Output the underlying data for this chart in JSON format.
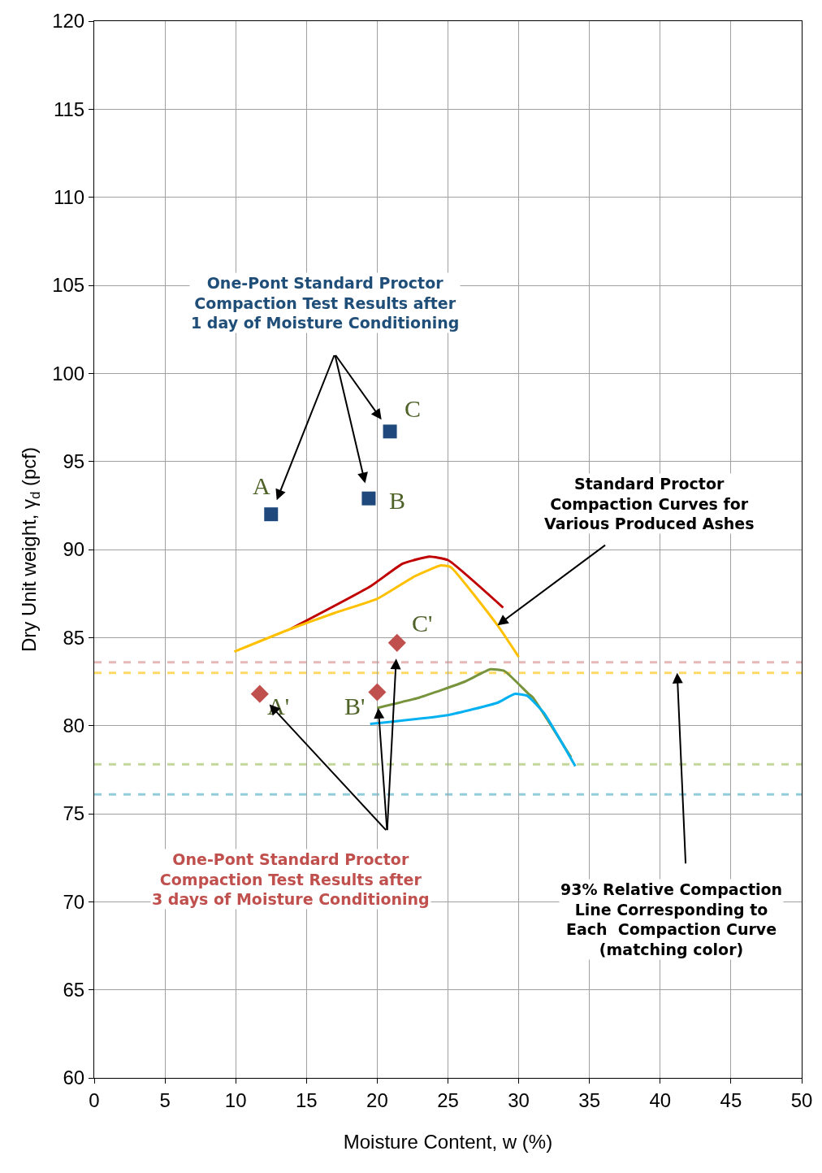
{
  "chart_data": {
    "type": "line",
    "xlabel": "Moisture Content, w (%)",
    "ylabel": "Dry Unit weight, γ$_{d}$ (pcf)",
    "xlim": [
      0,
      50
    ],
    "xticks": [
      0,
      5,
      10,
      15,
      20,
      25,
      30,
      35,
      40,
      45,
      50
    ],
    "ylim": [
      60,
      120
    ],
    "yticks": [
      60,
      65,
      70,
      75,
      80,
      85,
      90,
      95,
      100,
      105,
      110,
      115,
      120
    ],
    "grid": true,
    "series": [
      {
        "type": "scatter",
        "marker": "square",
        "color": "#1f497d",
        "x": [
          12.5,
          19.4,
          20.9
        ],
        "values": [
          92.0,
          92.9,
          96.7
        ]
      },
      {
        "type": "scatter",
        "marker": "diamond",
        "color": "#c0504d",
        "x": [
          11.7,
          20.0,
          21.4
        ],
        "values": [
          81.8,
          81.9,
          84.7
        ]
      },
      {
        "color": "#c00000",
        "x": [
          13.9,
          19.5,
          21.8,
          23.7,
          25.0,
          28.9
        ],
        "values": [
          85.5,
          87.9,
          89.2,
          89.6,
          89.4,
          86.7
        ]
      },
      {
        "color": "#ffc000",
        "x": [
          9.9,
          13.9,
          17.0,
          20.0,
          22.7,
          24.5,
          25.2,
          28.5,
          30.0
        ],
        "values": [
          84.2,
          85.5,
          86.4,
          87.2,
          88.5,
          89.1,
          89.0,
          85.7,
          83.9
        ]
      },
      {
        "color": "#77933c",
        "x": [
          20.0,
          23.0,
          26.2,
          28.0,
          29.0,
          30.7,
          31.0,
          33.7
        ],
        "values": [
          81.0,
          81.6,
          82.5,
          83.2,
          83.1,
          81.8,
          81.6,
          78.2
        ]
      },
      {
        "color": "#00b0f0",
        "x": [
          19.5,
          25.0,
          28.5,
          29.7,
          30.6,
          31.8,
          34.0
        ],
        "values": [
          80.1,
          80.6,
          81.3,
          81.8,
          81.7,
          80.7,
          77.7
        ]
      }
    ],
    "ref_lines": [
      {
        "axis": "y",
        "value": 83.6,
        "color": "#e6b8b7",
        "line_style": "dashed"
      },
      {
        "axis": "y",
        "value": 83.0,
        "color": "#ffd966",
        "line_style": "dashed"
      },
      {
        "axis": "y",
        "value": 77.8,
        "color": "#c4d79b",
        "line_style": "dashed"
      },
      {
        "axis": "y",
        "value": 76.1,
        "color": "#92cddc",
        "line_style": "dashed"
      }
    ],
    "annotations": [
      {
        "text": "A",
        "x": 12.5,
        "y": 92.0
      },
      {
        "text": "B",
        "x": 19.4,
        "y": 92.9
      },
      {
        "text": "C",
        "x": 20.9,
        "y": 96.7
      },
      {
        "text": "A'",
        "x": 11.7,
        "y": 81.8
      },
      {
        "text": "B'",
        "x": 20.0,
        "y": 81.9
      },
      {
        "text": "C'",
        "x": 21.4,
        "y": 84.7
      },
      "One-Pont Standard Proctor\nCompaction Test Results after\n1 day of Moisture Conditioning",
      "One-Pont Standard Proctor\nCompaction Test Results after\n3 days of Moisture Conditioning",
      {
        "text": "Standard Proctor\nCompaction Curves for\nVarious Produced Ashes",
        "x": 28.5,
        "y": 85.7
      },
      {
        "text": "93% Relative Compaction\nLine Corresponding to\nEach  Compaction Curve\n(matching color)",
        "x": 41.2,
        "y": 83.0
      }
    ]
  }
}
